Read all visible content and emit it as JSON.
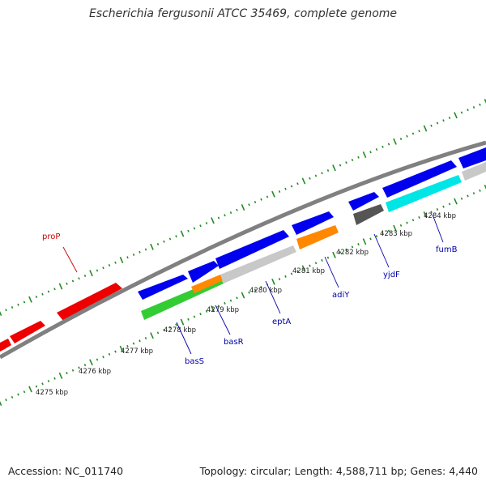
{
  "title": "Escherichia fergusonii ATCC 35469, complete genome",
  "footer": {
    "accession": "Accession: NC_011740",
    "summary": "Topology: circular; Length: 4,588,711 bp; Genes: 4,440"
  },
  "colors": {
    "forward_gene": "#0000ee",
    "reverse_gene": "#ee0000",
    "backbone": "#808080",
    "tick": "#228b22",
    "gene_label": "#0000aa",
    "rna_label": "#cc0000"
  },
  "scale_labels": [
    {
      "text": "4275 kbp",
      "kbp": 4275
    },
    {
      "text": "4276 kbp",
      "kbp": 4276
    },
    {
      "text": "4277 kbp",
      "kbp": 4277
    },
    {
      "text": "4278 kbp",
      "kbp": 4278
    },
    {
      "text": "4279 kbp",
      "kbp": 4279
    },
    {
      "text": "4280 kbp",
      "kbp": 4280
    },
    {
      "text": "4281 kbp",
      "kbp": 4281
    },
    {
      "text": "4282 kbp",
      "kbp": 4282
    },
    {
      "text": "4283 kbp",
      "kbp": 4283
    },
    {
      "text": "4284 kbp",
      "kbp": 4284
    }
  ],
  "gene_labels": [
    {
      "text": "proP",
      "kind": "rna"
    },
    {
      "text": "basS",
      "kind": "gene"
    },
    {
      "text": "basR",
      "kind": "gene"
    },
    {
      "text": "eptA",
      "kind": "gene"
    },
    {
      "text": "adiY",
      "kind": "gene"
    },
    {
      "text": "yjdF",
      "kind": "gene"
    },
    {
      "text": "fumB",
      "kind": "gene"
    }
  ]
}
